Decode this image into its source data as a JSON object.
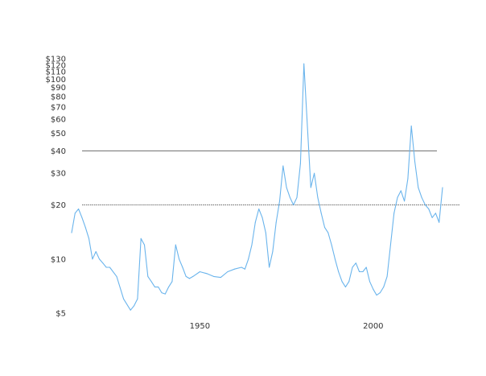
{
  "chart_data": {
    "type": "line",
    "title": "",
    "xlabel": "",
    "ylabel": "",
    "scale": {
      "y": "log"
    },
    "grid": false,
    "ylim": [
      5,
      130
    ],
    "xlim": [
      1913,
      2020
    ],
    "x_ticks": [
      {
        "value": 1950,
        "label": "1950"
      },
      {
        "value": 2000,
        "label": "2000"
      }
    ],
    "y_ticks": [
      {
        "value": 5,
        "label": "$5"
      },
      {
        "value": 10,
        "label": "$10"
      },
      {
        "value": 20,
        "label": "$20"
      },
      {
        "value": 30,
        "label": "$30"
      },
      {
        "value": 40,
        "label": "$40"
      },
      {
        "value": 50,
        "label": "$50"
      },
      {
        "value": 60,
        "label": "$60"
      },
      {
        "value": 70,
        "label": "$70"
      },
      {
        "value": 80,
        "label": "$80"
      },
      {
        "value": 90,
        "label": "$90"
      },
      {
        "value": 100,
        "label": "$100"
      },
      {
        "value": 110,
        "label": "$110"
      },
      {
        "value": 120,
        "label": "$120"
      },
      {
        "value": 130,
        "label": "$130"
      }
    ],
    "reference_lines": [
      {
        "value": 40,
        "color": "#555555"
      },
      {
        "value": 20,
        "color": "#555555"
      }
    ],
    "series_color": "#6ab4ec",
    "series": [
      {
        "x": [
          1913,
          1914,
          1915,
          1916,
          1917,
          1918,
          1919,
          1920,
          1921,
          1922,
          1923,
          1924,
          1926,
          1928,
          1930,
          1931,
          1932,
          1933,
          1934,
          1935,
          1936,
          1937,
          1938,
          1939,
          1940,
          1941,
          1942,
          1943,
          1944,
          1945,
          1946,
          1947,
          1948,
          1950,
          1952,
          1954,
          1956,
          1958,
          1960,
          1962,
          1963,
          1964,
          1965,
          1966,
          1967,
          1968,
          1969,
          1970,
          1971,
          1972,
          1973,
          1974,
          1975,
          1976,
          1977,
          1978,
          1979,
          1980,
          1981,
          1982,
          1983,
          1984,
          1985,
          1986,
          1987,
          1988,
          1989,
          1990,
          1991,
          1992,
          1993,
          1994,
          1995,
          1996,
          1997,
          1998,
          1999,
          2000,
          2001,
          2002,
          2003,
          2004,
          2005,
          2006,
          2007,
          2008,
          2009,
          2010,
          2011,
          2012,
          2013,
          2014,
          2015,
          2016,
          2017,
          2018,
          2019,
          2020
        ],
        "values": [
          14,
          18,
          19,
          17,
          15,
          13,
          10,
          11,
          10,
          9.5,
          9,
          9,
          8,
          6,
          5.2,
          5.5,
          6,
          13,
          12,
          8,
          7.5,
          7,
          7,
          6.5,
          6.4,
          7,
          7.5,
          12,
          10,
          9,
          8,
          7.8,
          8,
          8.5,
          8.3,
          8,
          7.9,
          8.5,
          8.8,
          9,
          8.8,
          10,
          12,
          16,
          19,
          17,
          14,
          9,
          11,
          16,
          21,
          33,
          25,
          22,
          20,
          22,
          34,
          122,
          55,
          25,
          30,
          22,
          18,
          15,
          14,
          12,
          10,
          8.5,
          7.5,
          7,
          7.5,
          9,
          9.5,
          8.5,
          8.5,
          9,
          7.5,
          6.8,
          6.3,
          6.5,
          7,
          8,
          12,
          18,
          22,
          24,
          21,
          28,
          55,
          35,
          25,
          22,
          20,
          19,
          17,
          18,
          16,
          25
        ]
      }
    ]
  }
}
